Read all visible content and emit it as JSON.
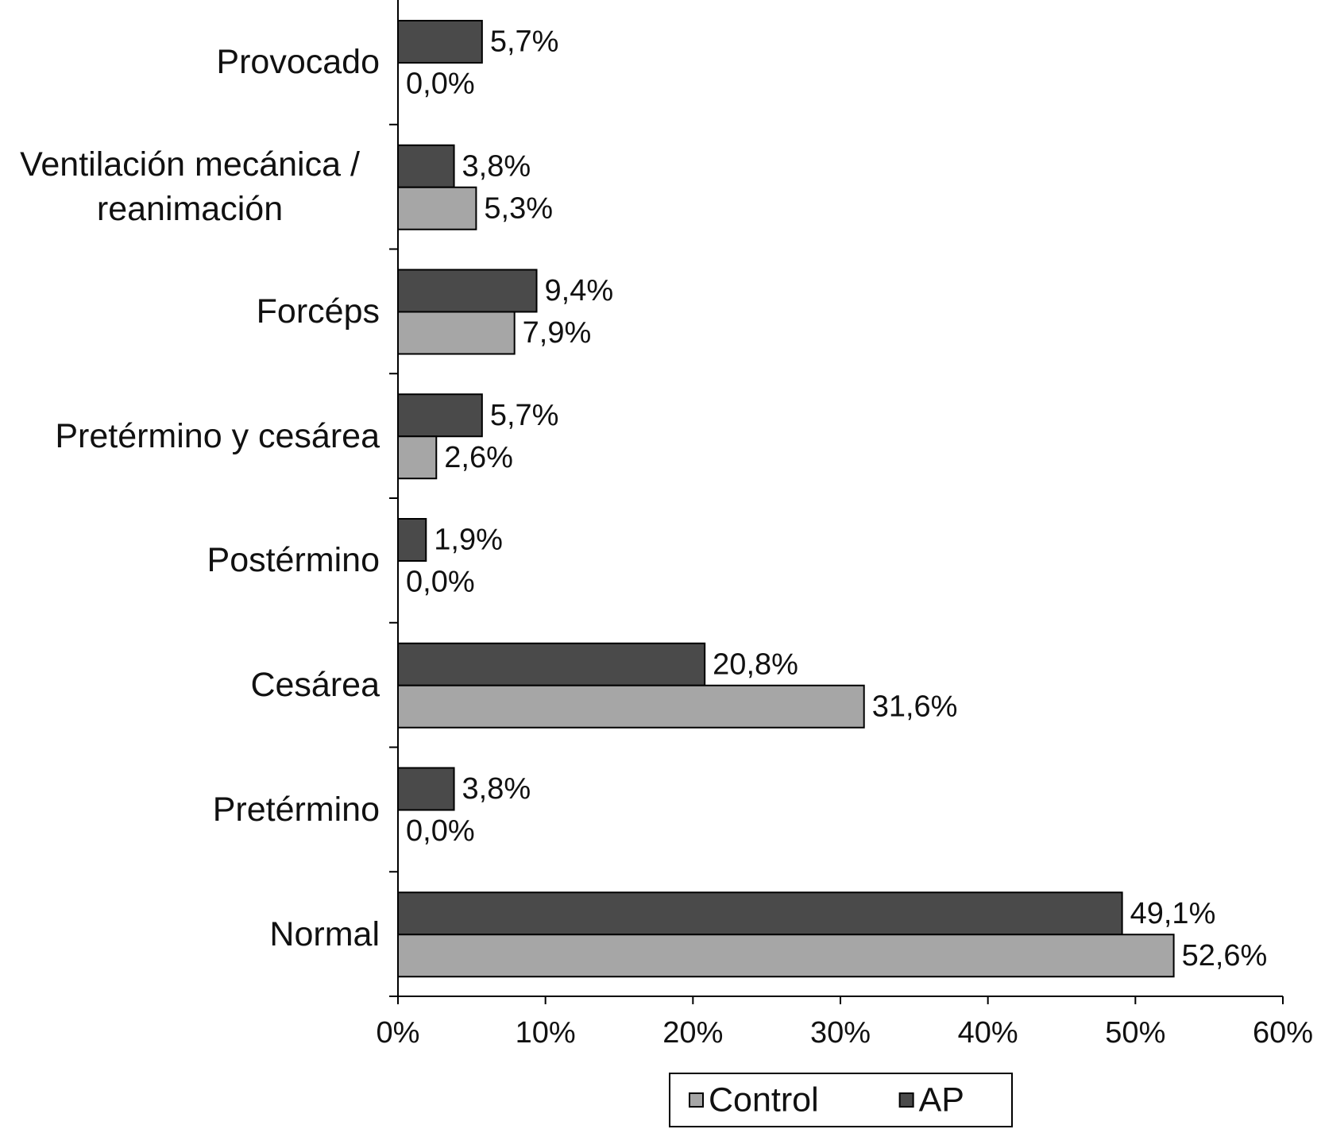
{
  "chart_data": {
    "type": "bar",
    "orientation": "horizontal",
    "categories": [
      "Provocado",
      "Ventilación mecánica / reanimación",
      "Forcéps",
      "Pretérmino y cesárea",
      "Postérmino",
      "Cesárea",
      "Pretérmino",
      "Normal"
    ],
    "series": [
      {
        "name": "Control",
        "color": "#a6a6a6",
        "values": [
          0.0,
          5.3,
          7.9,
          2.6,
          0.0,
          31.6,
          0.0,
          52.6
        ],
        "value_labels": [
          "0,0%",
          "5,3%",
          "7,9%",
          "2,6%",
          "0,0%",
          "31,6%",
          "0,0%",
          "52,6%"
        ]
      },
      {
        "name": "AP",
        "color": "#4a4a4a",
        "values": [
          5.7,
          3.8,
          9.4,
          5.7,
          1.9,
          20.8,
          3.8,
          49.1
        ],
        "value_labels": [
          "5,7%",
          "3,8%",
          "9,4%",
          "5,7%",
          "1,9%",
          "20,8%",
          "3,8%",
          "49,1%"
        ]
      }
    ],
    "xlim": [
      0,
      60
    ],
    "xticks": [
      {
        "value": 0,
        "label": "0%"
      },
      {
        "value": 10,
        "label": "10%"
      },
      {
        "value": 20,
        "label": "20%"
      },
      {
        "value": 30,
        "label": "30%"
      },
      {
        "value": 40,
        "label": "40%"
      },
      {
        "value": 50,
        "label": "50%"
      },
      {
        "value": 60,
        "label": "60%"
      }
    ],
    "legend": "bottom"
  }
}
